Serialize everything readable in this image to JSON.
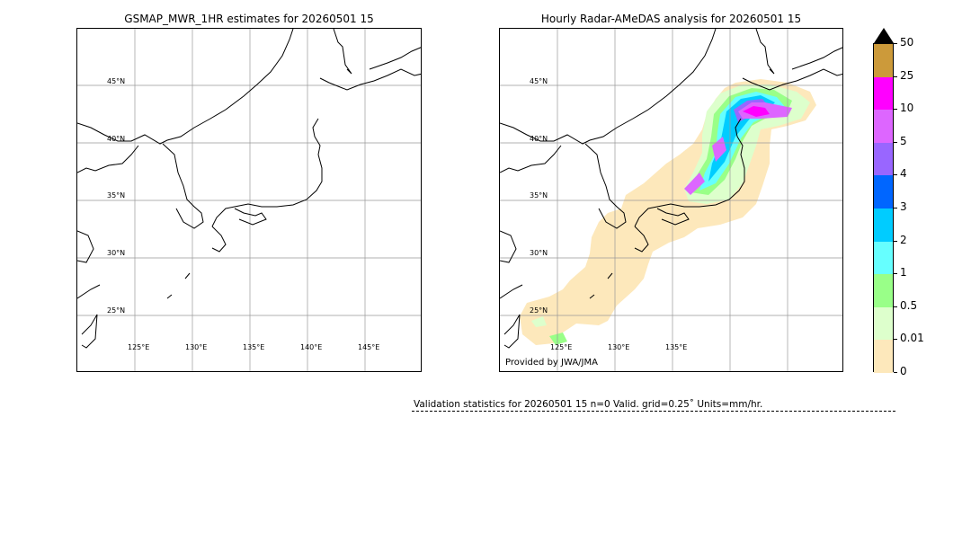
{
  "left_panel": {
    "title": "GSMAP_MWR_1HR estimates for 20260501 15",
    "lat_labels": [
      "45°N",
      "40°N",
      "35°N",
      "30°N",
      "25°N"
    ],
    "lon_labels": [
      "125°E",
      "130°E",
      "135°E",
      "140°E",
      "145°E"
    ]
  },
  "right_panel": {
    "title": "Hourly Radar-AMeDAS analysis for 20260501 15",
    "lat_labels": [
      "45°N",
      "40°N",
      "35°N",
      "30°N",
      "25°N"
    ],
    "lon_labels": [
      "125°E",
      "130°E",
      "135°E"
    ],
    "credit": "Provided by JWA/JMA"
  },
  "colorbar": {
    "ticks": [
      "50",
      "25",
      "10",
      "5",
      "4",
      "3",
      "2",
      "1",
      "0.5",
      "0.01",
      "0"
    ],
    "colors": [
      "#cc9a3a",
      "#ff00ff",
      "#dd66ff",
      "#9966ff",
      "#0066ff",
      "#00ccff",
      "#66ffff",
      "#99ff88",
      "#ddffcc",
      "#fde8bb"
    ],
    "arrow_color": "#000000"
  },
  "stats": {
    "text": "Validation statistics for 20260501 15  n=0 Valid. grid=0.25˚ Units=mm/hr."
  }
}
